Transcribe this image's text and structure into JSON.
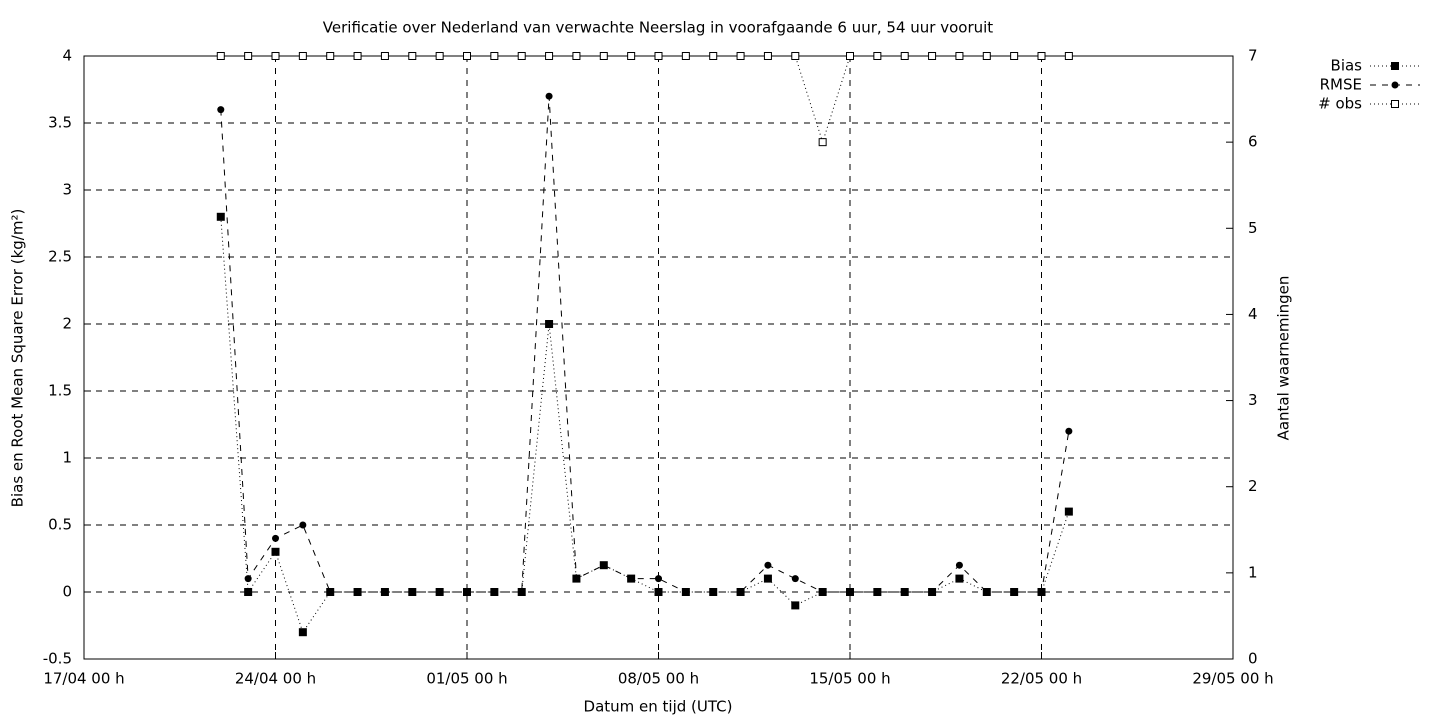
{
  "chart_data": {
    "type": "line",
    "title": "Verificatie over Nederland van verwachte Neerslag in voorafgaande 6 uur, 54 uur vooruit",
    "x_label": "Datum en tijd (UTC)",
    "y_label": "Bias en Root Mean Square Error (kg/m²)",
    "y2_label": "Aantal waarnemingen",
    "x": [
      "22/04 00 h",
      "23/04 00 h",
      "24/04 00 h",
      "25/04 00 h",
      "26/04 00 h",
      "27/04 00 h",
      "28/04 00 h",
      "29/04 00 h",
      "30/04 00 h",
      "01/05 00 h",
      "02/05 00 h",
      "03/05 00 h",
      "04/05 00 h",
      "05/05 00 h",
      "06/05 00 h",
      "07/05 00 h",
      "08/05 00 h",
      "09/05 00 h",
      "10/05 00 h",
      "11/05 00 h",
      "12/05 00 h",
      "13/05 00 h",
      "14/05 00 h",
      "15/05 00 h",
      "16/05 00 h",
      "17/05 00 h",
      "18/05 00 h",
      "19/05 00 h",
      "20/05 00 h",
      "21/05 00 h",
      "22/05 00 h",
      "23/05 00 h"
    ],
    "xlim": [
      "17/04 00 h",
      "29/05 00 h"
    ],
    "xticks": [
      "17/04 00 h",
      "24/04 00 h",
      "01/05 00 h",
      "08/05 00 h",
      "15/05 00 h",
      "22/05 00 h",
      "29/05 00 h"
    ],
    "ylim": [
      -0.5,
      4
    ],
    "yticks": [
      -0.5,
      0,
      0.5,
      1,
      1.5,
      2,
      2.5,
      3,
      3.5,
      4
    ],
    "y2lim": [
      0,
      7
    ],
    "y2ticks": [
      0,
      1,
      2,
      3,
      4,
      5,
      6,
      7
    ],
    "grid": true,
    "legend": "top-right",
    "series": [
      {
        "name": "Bias",
        "color": "#000000",
        "line_style": "dotted",
        "marker": "filled-square",
        "values": [
          2.8,
          0,
          0.3,
          -0.3,
          0,
          0,
          0,
          0,
          0,
          0,
          0,
          0,
          2.0,
          0.1,
          0.2,
          0.1,
          0,
          0,
          0,
          0,
          0.1,
          -0.1,
          0,
          0,
          0,
          0,
          0,
          0.1,
          0,
          0,
          0,
          0.6
        ]
      },
      {
        "name": "RMSE",
        "color": "#000000",
        "line_style": "dashed",
        "marker": "filled-circle",
        "values": [
          3.6,
          0.1,
          0.4,
          0.5,
          0,
          0,
          0,
          0,
          0,
          0,
          0,
          0,
          3.7,
          0.1,
          0.2,
          0.1,
          0.1,
          0,
          0,
          0,
          0.2,
          0.1,
          0,
          0,
          0,
          0,
          0,
          0.2,
          0,
          0,
          0,
          1.2
        ]
      },
      {
        "name": "# obs",
        "color": "#000000",
        "line_style": "dotted",
        "marker": "open-square",
        "axis": "y2",
        "values": [
          7,
          7,
          7,
          7,
          7,
          7,
          7,
          7,
          7,
          7,
          7,
          7,
          7,
          7,
          7,
          7,
          7,
          7,
          7,
          7,
          7,
          7,
          6,
          7,
          7,
          7,
          7,
          7,
          7,
          7,
          7,
          7
        ]
      }
    ]
  }
}
